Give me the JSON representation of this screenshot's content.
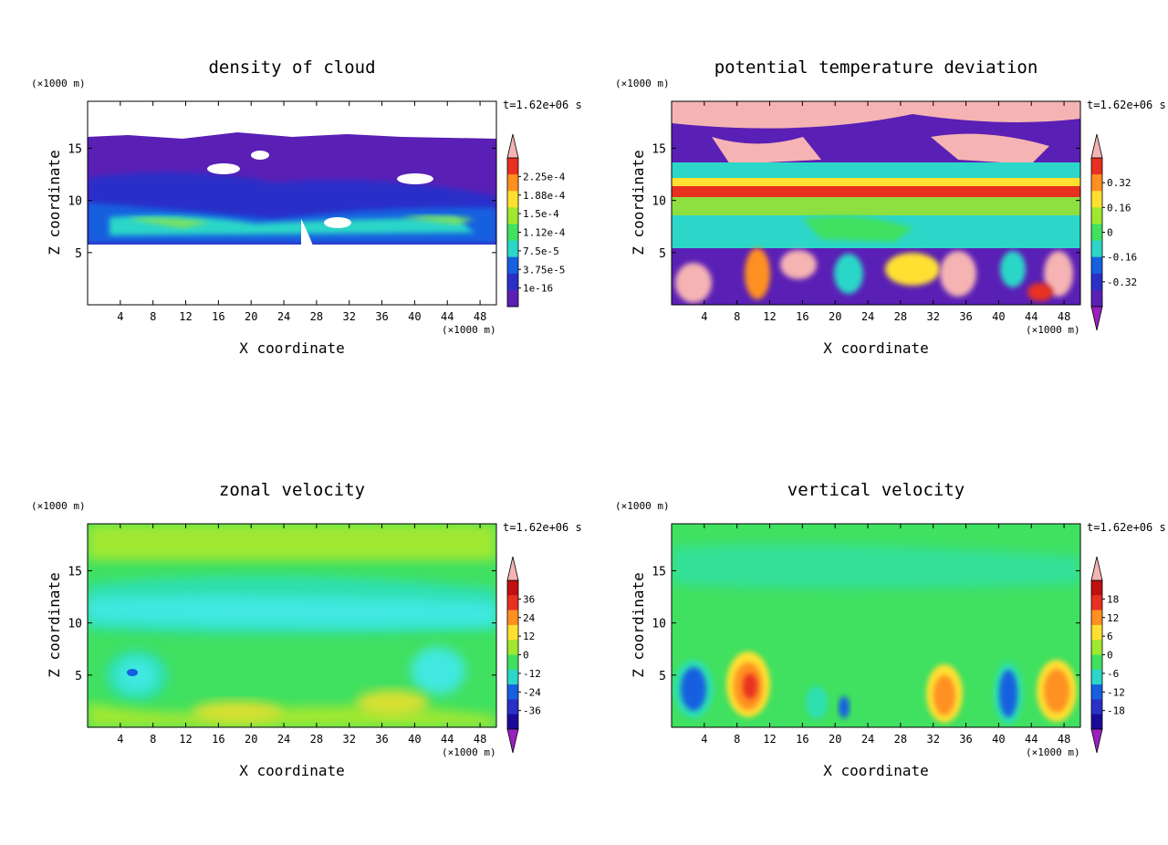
{
  "charts": [
    {
      "title": "density of cloud",
      "xlabel": "X coordinate",
      "ylabel": "Z coordinate",
      "x_unit": "(×1000 m)",
      "y_unit": "(×1000 m)",
      "time_label": "t=1.62e+06 s",
      "xticks": [
        "4",
        "8",
        "12",
        "16",
        "20",
        "24",
        "28",
        "32",
        "36",
        "40",
        "44",
        "48"
      ],
      "yticks": [
        "5",
        "10",
        "15"
      ],
      "cbar_labels": [
        "2.25e-4",
        "1.88e-4",
        "1.5e-4",
        "1.12e-4",
        "7.5e-5",
        "3.75e-5",
        "1e-16"
      ]
    },
    {
      "title": "potential temperature deviation",
      "xlabel": "X coordinate",
      "ylabel": "Z coordinate",
      "x_unit": "(×1000 m)",
      "y_unit": "(×1000 m)",
      "time_label": "t=1.62e+06 s",
      "xticks": [
        "4",
        "8",
        "12",
        "16",
        "20",
        "24",
        "28",
        "32",
        "36",
        "40",
        "44",
        "48"
      ],
      "yticks": [
        "5",
        "10",
        "15"
      ],
      "cbar_labels": [
        "0.32",
        "0.16",
        "0",
        "-0.16",
        "-0.32"
      ]
    },
    {
      "title": "zonal velocity",
      "xlabel": "X coordinate",
      "ylabel": "Z coordinate",
      "x_unit": "(×1000 m)",
      "y_unit": "(×1000 m)",
      "time_label": "t=1.62e+06 s",
      "xticks": [
        "4",
        "8",
        "12",
        "16",
        "20",
        "24",
        "28",
        "32",
        "36",
        "40",
        "44",
        "48"
      ],
      "yticks": [
        "5",
        "10",
        "15"
      ],
      "cbar_labels": [
        "36",
        "24",
        "12",
        "0",
        "-12",
        "-24",
        "-36"
      ]
    },
    {
      "title": "vertical velocity",
      "xlabel": "X coordinate",
      "ylabel": "Z coordinate",
      "x_unit": "(×1000 m)",
      "y_unit": "(×1000 m)",
      "time_label": "t=1.62e+06 s",
      "xticks": [
        "4",
        "8",
        "12",
        "16",
        "20",
        "24",
        "28",
        "32",
        "36",
        "40",
        "44",
        "48"
      ],
      "yticks": [
        "5",
        "10",
        "15"
      ],
      "cbar_labels": [
        "18",
        "12",
        "6",
        "0",
        "-6",
        "-12",
        "-18"
      ]
    }
  ],
  "chart_data": [
    {
      "type": "heatmap",
      "title": "density of cloud",
      "xlabel": "X coordinate",
      "ylabel": "Z coordinate",
      "xlim": [
        0,
        50
      ],
      "ylim": [
        0,
        19.5
      ],
      "xticks": [
        4,
        8,
        12,
        16,
        20,
        24,
        28,
        32,
        36,
        40,
        44,
        48
      ],
      "yticks": [
        5,
        10,
        15
      ],
      "colorbar": {
        "levels": [
          "1e-16",
          "3.75e-5",
          "7.5e-5",
          "1.12e-4",
          "1.5e-4",
          "1.88e-4",
          "2.25e-4"
        ],
        "extend": "max"
      },
      "description_values": {
        "cloud_base_km": 5.5,
        "cloud_top_km": 16
      }
    },
    {
      "type": "heatmap",
      "title": "potential temperature deviation",
      "xlabel": "X coordinate",
      "ylabel": "Z coordinate",
      "xlim": [
        0,
        50
      ],
      "ylim": [
        0,
        19.5
      ],
      "xticks": [
        4,
        8,
        12,
        16,
        20,
        24,
        28,
        32,
        36,
        40,
        44,
        48
      ],
      "yticks": [
        5,
        10,
        15
      ],
      "colorbar": {
        "levels": [
          -0.32,
          -0.16,
          0,
          0.16,
          0.32
        ],
        "extend": "both"
      }
    },
    {
      "type": "heatmap",
      "title": "zonal velocity",
      "xlabel": "X coordinate",
      "ylabel": "Z coordinate",
      "xlim": [
        0,
        50
      ],
      "ylim": [
        0,
        19.5
      ],
      "xticks": [
        4,
        8,
        12,
        16,
        20,
        24,
        28,
        32,
        36,
        40,
        44,
        48
      ],
      "yticks": [
        5,
        10,
        15
      ],
      "colorbar": {
        "levels": [
          -36,
          -24,
          -12,
          0,
          12,
          24,
          36
        ],
        "extend": "both"
      }
    },
    {
      "type": "heatmap",
      "title": "vertical velocity",
      "xlabel": "X coordinate",
      "ylabel": "Z coordinate",
      "xlim": [
        0,
        50
      ],
      "ylim": [
        0,
        19.5
      ],
      "xticks": [
        4,
        8,
        12,
        16,
        20,
        24,
        28,
        32,
        36,
        40,
        44,
        48
      ],
      "yticks": [
        5,
        10,
        15
      ],
      "colorbar": {
        "levels": [
          -18,
          -12,
          -6,
          0,
          6,
          12,
          18
        ],
        "extend": "both"
      },
      "features": [
        {
          "x": 3,
          "z": 3.5,
          "value": -15
        },
        {
          "x": 9,
          "z": 4,
          "value": 18
        },
        {
          "x": 33,
          "z": 3,
          "value": 15
        },
        {
          "x": 41,
          "z": 3.5,
          "value": -15
        },
        {
          "x": 47,
          "z": 3.5,
          "value": 15
        }
      ]
    }
  ]
}
